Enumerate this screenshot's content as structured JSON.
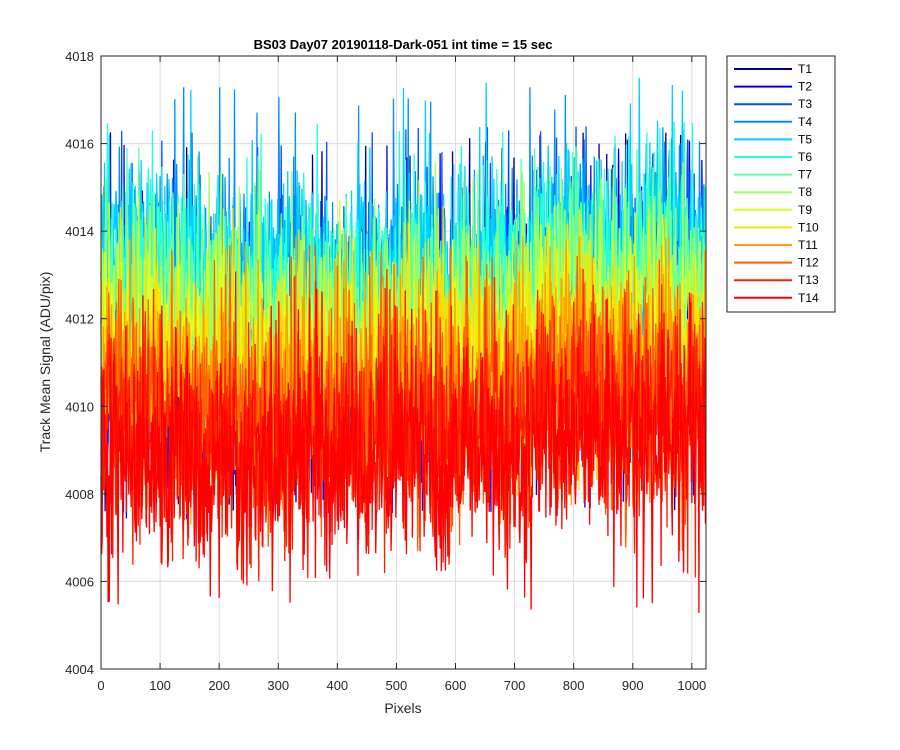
{
  "chart_data": {
    "type": "line",
    "title": "BS03 Day07 20190118-Dark-051 int time = 15 sec",
    "xlabel": "Pixels",
    "ylabel": "Track Mean Signal (ADU/pix)",
    "xlim": [
      0,
      1024
    ],
    "ylim": [
      4004,
      4018
    ],
    "xticks": [
      0,
      100,
      200,
      300,
      400,
      500,
      600,
      700,
      800,
      900,
      1000
    ],
    "yticks": [
      4004,
      4006,
      4008,
      4010,
      4012,
      4014,
      4016,
      4018
    ],
    "grid": true,
    "legend_position": "outside-top-right",
    "num_points": 1024,
    "series": [
      {
        "name": "T1",
        "color": "#00008f",
        "mean": 4011.6,
        "noise": 1.6,
        "min": 4007.6,
        "max": 4016.3
      },
      {
        "name": "T2",
        "color": "#0000ff",
        "mean": 4011.4,
        "noise": 1.6,
        "min": 4007.4,
        "max": 4016.1
      },
      {
        "name": "T3",
        "color": "#0050ff",
        "mean": 4012.2,
        "noise": 1.5,
        "min": 4008.5,
        "max": 4016.4
      },
      {
        "name": "T4",
        "color": "#008fff",
        "mean": 4013.0,
        "noise": 1.4,
        "min": 4009.5,
        "max": 4017.3
      },
      {
        "name": "T5",
        "color": "#00cfff",
        "mean": 4013.4,
        "noise": 1.3,
        "min": 4010.0,
        "max": 4017.5
      },
      {
        "name": "T6",
        "color": "#20ffdf",
        "mean": 4012.9,
        "noise": 1.3,
        "min": 4009.8,
        "max": 4016.5
      },
      {
        "name": "T7",
        "color": "#60ff9f",
        "mean": 4012.4,
        "noise": 1.3,
        "min": 4009.2,
        "max": 4016.1
      },
      {
        "name": "T8",
        "color": "#9fff60",
        "mean": 4012.0,
        "noise": 1.3,
        "min": 4008.9,
        "max": 4015.6
      },
      {
        "name": "T9",
        "color": "#dfff20",
        "mean": 4011.5,
        "noise": 1.3,
        "min": 4008.4,
        "max": 4015.0
      },
      {
        "name": "T10",
        "color": "#ffdf00",
        "mean": 4011.0,
        "noise": 1.3,
        "min": 4007.9,
        "max": 4014.6
      },
      {
        "name": "T11",
        "color": "#ffa000",
        "mean": 4010.5,
        "noise": 1.3,
        "min": 4007.3,
        "max": 4014.1
      },
      {
        "name": "T12",
        "color": "#ff6000",
        "mean": 4010.0,
        "noise": 1.3,
        "min": 4006.5,
        "max": 4013.7
      },
      {
        "name": "T13",
        "color": "#ff2000",
        "mean": 4009.5,
        "noise": 1.3,
        "min": 4006.0,
        "max": 4013.2
      },
      {
        "name": "T14",
        "color": "#ff0000",
        "mean": 4009.0,
        "noise": 1.3,
        "min": 4005.1,
        "max": 4012.7
      }
    ]
  }
}
